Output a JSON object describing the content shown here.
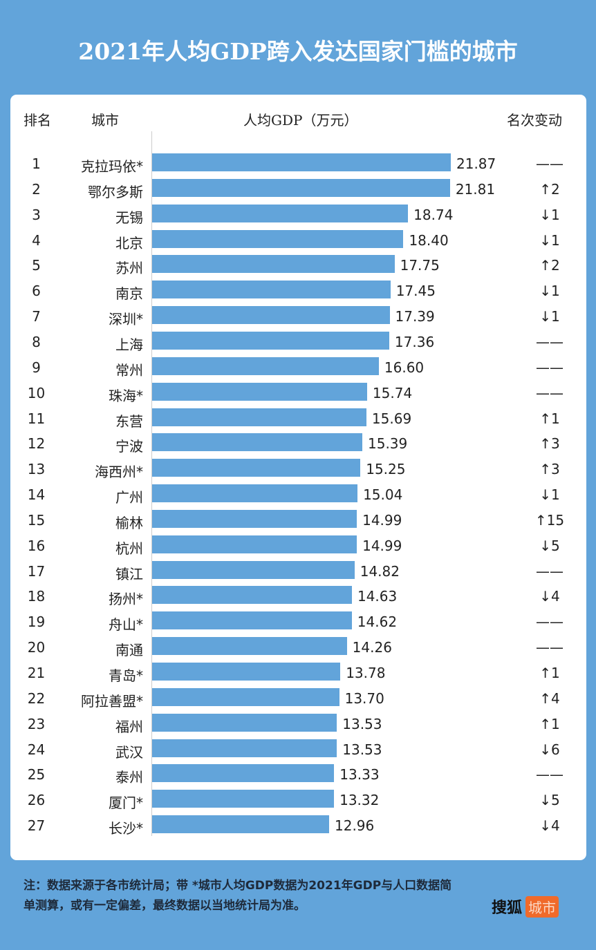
{
  "title": "2021年人均GDP跨入发达国家门槛的城市",
  "header": {
    "rank": "排名",
    "city": "城市",
    "gdp": "人均GDP（万元）",
    "change": "名次变动"
  },
  "chart_data": {
    "type": "bar",
    "orientation": "horizontal",
    "title": "2021年人均GDP跨入发达国家门槛的城市",
    "xlabel": "人均GDP（万元）",
    "ranks": [
      1,
      2,
      3,
      4,
      5,
      6,
      7,
      8,
      9,
      10,
      11,
      12,
      13,
      14,
      15,
      16,
      17,
      18,
      19,
      20,
      21,
      22,
      23,
      24,
      25,
      26,
      27
    ],
    "categories": [
      "克拉玛依*",
      "鄂尔多斯",
      "无锡",
      "北京",
      "苏州",
      "南京",
      "深圳*",
      "上海",
      "常州",
      "珠海*",
      "东营",
      "宁波",
      "海西州*",
      "广州",
      "榆林",
      "杭州",
      "镇江",
      "扬州*",
      "舟山*",
      "南通",
      "青岛*",
      "阿拉善盟*",
      "福州",
      "武汉",
      "泰州",
      "厦门*",
      "长沙*"
    ],
    "values": [
      21.87,
      21.81,
      18.74,
      18.4,
      17.75,
      17.45,
      17.39,
      17.36,
      16.6,
      15.74,
      15.69,
      15.39,
      15.25,
      15.04,
      14.99,
      14.99,
      14.82,
      14.63,
      14.62,
      14.26,
      13.78,
      13.7,
      13.53,
      13.53,
      13.33,
      13.32,
      12.96
    ],
    "value_labels": [
      "21.87",
      "21.81",
      "18.74",
      "18.40",
      "17.75",
      "17.45",
      "17.39",
      "17.36",
      "16.60",
      "15.74",
      "15.69",
      "15.39",
      "15.25",
      "15.04",
      "14.99",
      "14.99",
      "14.82",
      "14.63",
      "14.62",
      "14.26",
      "13.78",
      "13.70",
      "13.53",
      "13.53",
      "13.33",
      "13.32",
      "12.96"
    ],
    "rank_change": [
      "——",
      "↑2",
      "↓1",
      "↓1",
      "↑2",
      "↓1",
      "↓1",
      "——",
      "——",
      "——",
      "↑1",
      "↑3",
      "↑3",
      "↓1",
      "↑15",
      "↓5",
      "——",
      "↓4",
      "——",
      "——",
      "↑1",
      "↑4",
      "↑1",
      "↓6",
      "——",
      "↓5",
      "↓4"
    ],
    "xlim": [
      0,
      22
    ],
    "bar_color": "#62a4da"
  },
  "note": "注：数据来源于各市统计局；带 *城市人均GDP数据为2021年GDP与人口数据简单测算，或有一定偏差，最终数据以当地统计局为准。",
  "logo": {
    "brand": "搜狐",
    "section": "城市"
  }
}
